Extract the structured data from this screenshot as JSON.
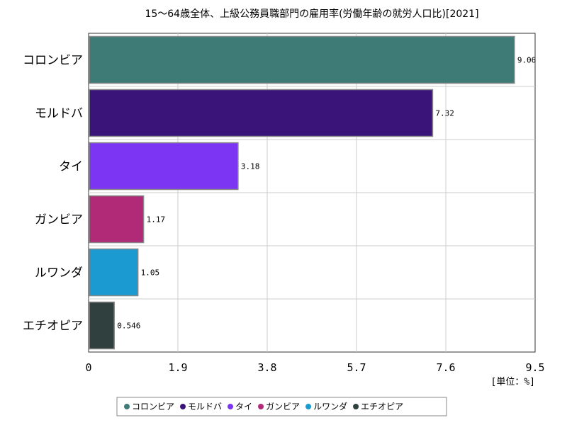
{
  "chart_data": {
    "type": "bar",
    "orientation": "horizontal",
    "title": "15〜64歳全体、上級公務員職部門の雇用率(労働年齢の就労人口比)[2021]",
    "categories": [
      "コロンビア",
      "モルドバ",
      "タイ",
      "ガンビア",
      "ルワンダ",
      "エチオピア"
    ],
    "values": [
      9.06,
      7.32,
      3.18,
      1.17,
      1.05,
      0.546
    ],
    "value_labels": [
      "9.06",
      "7.32",
      "3.18",
      "1.17",
      "1.05",
      "0.546"
    ],
    "colors": [
      "#3e7b77",
      "#3a1478",
      "#7b35f3",
      "#b02a77",
      "#1b9ad2",
      "#2f403e"
    ],
    "xlim": [
      0,
      9.5
    ],
    "xticks": [
      "0",
      "1.9",
      "3.8",
      "5.7",
      "7.6",
      "9.5"
    ],
    "xtick_values": [
      0,
      1.9,
      3.8,
      5.7,
      7.6,
      9.5
    ],
    "unit_label": "[単位：%]",
    "legend_position": "bottom",
    "grid": true
  }
}
